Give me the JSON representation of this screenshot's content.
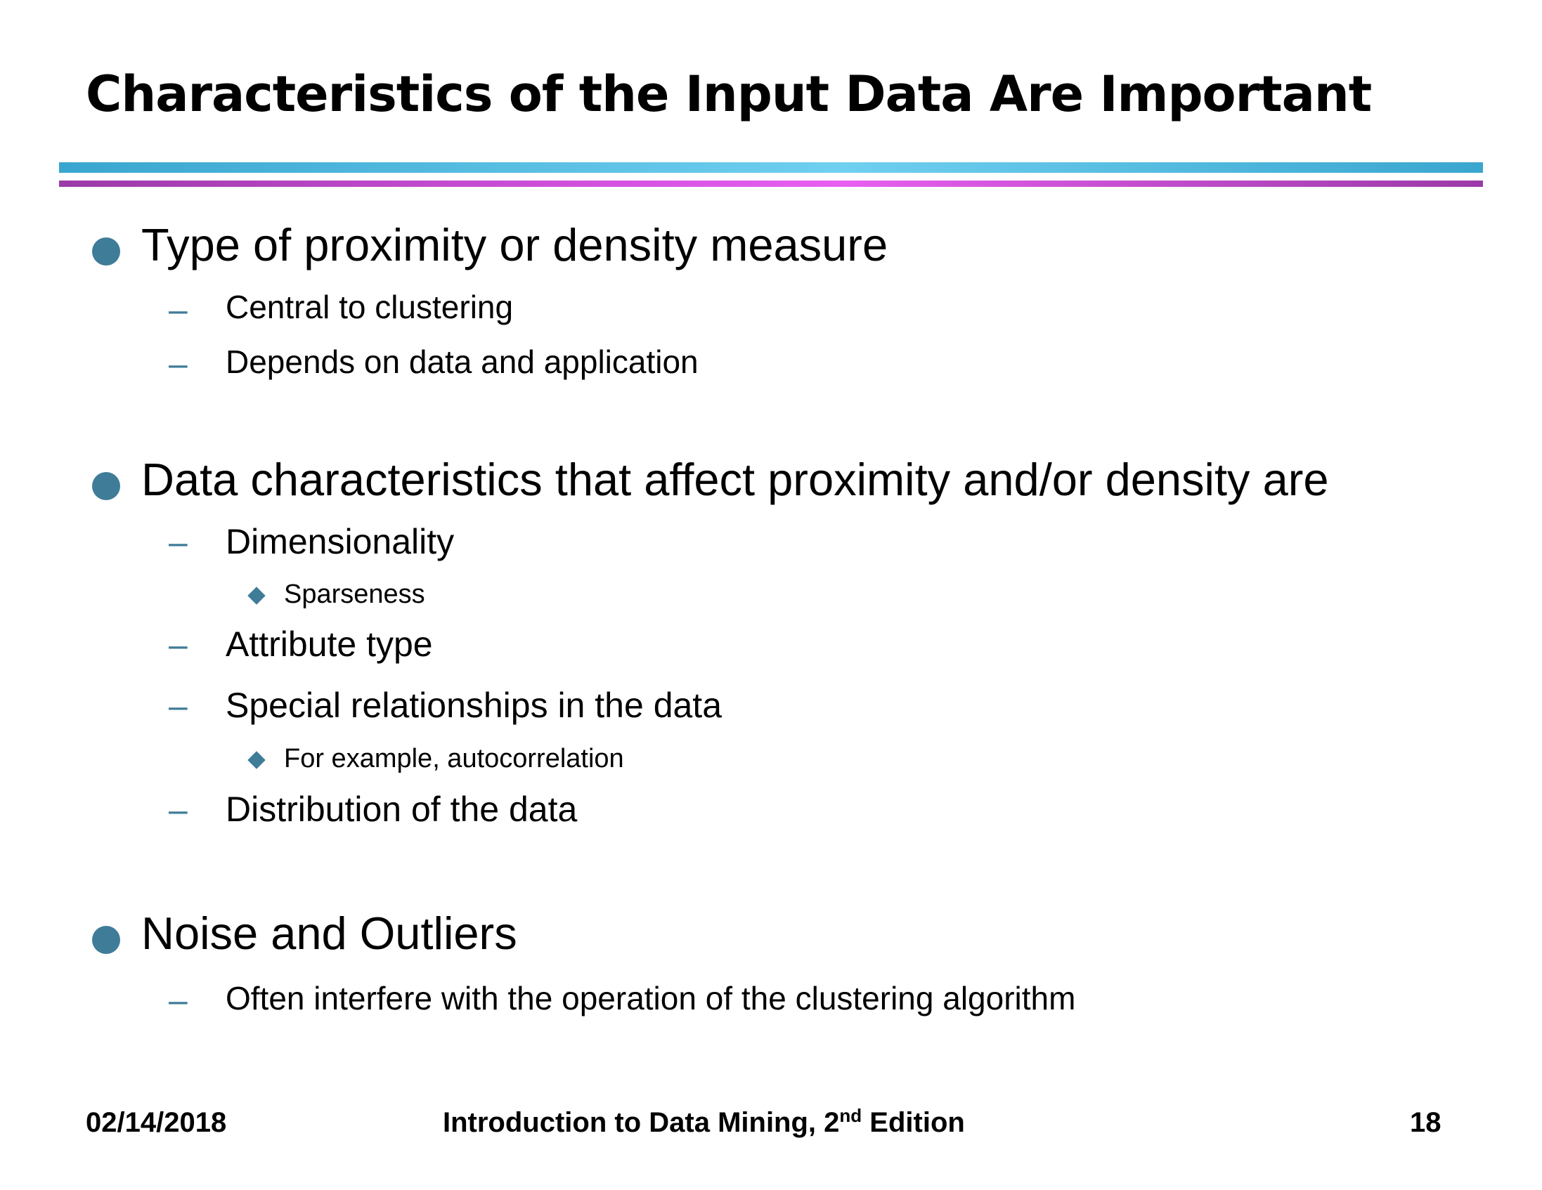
{
  "slide": {
    "title": "Characteristics of the Input Data Are Important"
  },
  "bullets": [
    {
      "text": "Type of proximity or density measure",
      "sub": [
        {
          "text": "Central to clustering"
        },
        {
          "text": "Depends on data and application"
        }
      ]
    },
    {
      "text": "Data characteristics that affect proximity and/or density are",
      "sub": [
        {
          "text": "Dimensionality",
          "sub": [
            {
              "text": "Sparseness"
            }
          ]
        },
        {
          "text": "Attribute type"
        },
        {
          "text": "Special relationships in the data",
          "sub": [
            {
              "text": "For example, autocorrelation"
            }
          ]
        },
        {
          "text": "Distribution of the data"
        }
      ]
    },
    {
      "text": "Noise and Outliers",
      "sub": [
        {
          "text": "Often interfere with the operation of the clustering algorithm"
        }
      ]
    }
  ],
  "footer": {
    "date": "02/14/2018",
    "book_prefix": "Introduction to Data Mining, 2",
    "book_sup": "nd",
    "book_suffix": " Edition",
    "page_number": "18"
  },
  "colors": {
    "bullet": "#3f7c98",
    "rule_top": "#65c8ea",
    "rule_bottom": "#e060ea"
  }
}
